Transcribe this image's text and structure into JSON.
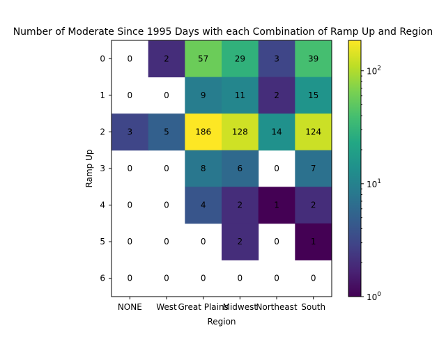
{
  "chart_data": {
    "type": "heatmap",
    "title": "Number of Moderate Since 1995 Days with each Combination of Ramp Up and Region",
    "xlabel": "Region",
    "ylabel": "Ramp Up",
    "x_categories": [
      "NONE",
      "West",
      "Great Plains",
      "Midwest",
      "Northeast",
      "South"
    ],
    "y_categories": [
      "0",
      "1",
      "2",
      "3",
      "4",
      "5",
      "6"
    ],
    "values": [
      [
        0,
        2,
        57,
        29,
        3,
        39
      ],
      [
        0,
        0,
        9,
        11,
        2,
        15
      ],
      [
        3,
        5,
        186,
        128,
        14,
        124
      ],
      [
        0,
        0,
        8,
        6,
        0,
        7
      ],
      [
        0,
        0,
        4,
        2,
        1,
        2
      ],
      [
        0,
        0,
        0,
        2,
        0,
        1
      ],
      [
        0,
        0,
        0,
        0,
        0,
        0
      ]
    ],
    "colorscale": "viridis",
    "color_scale_type": "log",
    "zero_cells": "blank",
    "colorbar": {
      "range": [
        1,
        186
      ],
      "ticks": [
        {
          "value": 1,
          "label": "10",
          "exp": "0"
        },
        {
          "value": 10,
          "label": "10",
          "exp": "1"
        },
        {
          "value": 100,
          "label": "10",
          "exp": "2"
        }
      ]
    },
    "grid": false,
    "legend": "colorbar-right"
  }
}
